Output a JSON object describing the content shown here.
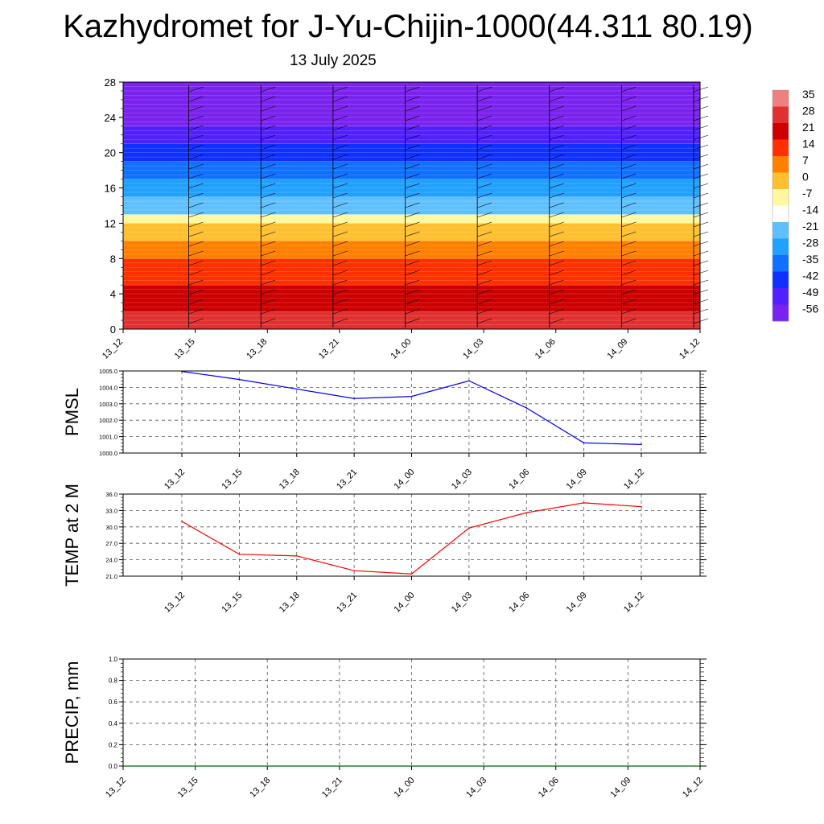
{
  "title": "Kazhydromet for J-Yu-Chijin-1000(44.311 80.19)",
  "subtitle": "13 July 2025",
  "colors": {
    "pmsl_line": "#0000ff",
    "temp_line": "#ff0000",
    "precip_line": "#006400",
    "grid": "#555555"
  },
  "chart_data": [
    {
      "type": "heatmap",
      "title": "",
      "xlabel": "",
      "ylabel": "",
      "x": [
        "13_12",
        "13_15",
        "13_18",
        "13_21",
        "14_00",
        "14_03",
        "14_06",
        "14_09",
        "14_12"
      ],
      "yticks": [
        0,
        4,
        8,
        12,
        16,
        20,
        24,
        28
      ],
      "ylim": [
        0,
        28
      ],
      "colorbar": {
        "labels": [
          "35",
          "28",
          "21",
          "14",
          "7",
          "0",
          "-7",
          "-14",
          "-21",
          "-28",
          "-35",
          "-42",
          "-49",
          "-56"
        ],
        "colors": [
          "#ee8080",
          "#e03030",
          "#cc0000",
          "#ff3000",
          "#ff8000",
          "#ffc030",
          "#fff8a0",
          "#ffffff",
          "#60c0ff",
          "#20a0ff",
          "#1070ff",
          "#1030ff",
          "#5020ff",
          "#7a22ee"
        ]
      },
      "bands": [
        {
          "level_from": 0,
          "level_to": 2,
          "value": 28
        },
        {
          "level_from": 2,
          "level_to": 5,
          "value": 21
        },
        {
          "level_from": 5,
          "level_to": 8,
          "value": 14
        },
        {
          "level_from": 8,
          "level_to": 10,
          "value": 7
        },
        {
          "level_from": 10,
          "level_to": 12,
          "value": 0
        },
        {
          "level_from": 12,
          "level_to": 13,
          "value": -7
        },
        {
          "level_from": 13,
          "level_to": 15,
          "value": -21
        },
        {
          "level_from": 15,
          "level_to": 17,
          "value": -28
        },
        {
          "level_from": 17,
          "level_to": 19,
          "value": -35
        },
        {
          "level_from": 19,
          "level_to": 21,
          "value": -42
        },
        {
          "level_from": 21,
          "level_to": 23,
          "value": -49
        },
        {
          "level_from": 23,
          "level_to": 28,
          "value": -56
        }
      ]
    },
    {
      "type": "line",
      "ylabel": "PMSL",
      "x": [
        "13_12",
        "13_15",
        "13_18",
        "13_21",
        "14_00",
        "14_03",
        "14_06",
        "14_09",
        "14_12"
      ],
      "ylim": [
        1000.0,
        1005.0
      ],
      "yticks": [
        "1000.0",
        "1001.0",
        "1002.0",
        "1003.0",
        "1004.0",
        "1005.0"
      ],
      "series": [
        {
          "values": [
            1004.97,
            1004.48,
            1003.9,
            1003.32,
            1003.45,
            1004.4,
            1002.75,
            1000.62,
            1000.52
          ]
        }
      ]
    },
    {
      "type": "line",
      "ylabel": "TEMP at 2 M",
      "x": [
        "13_12",
        "13_15",
        "13_18",
        "13_21",
        "14_00",
        "14_03",
        "14_06",
        "14_09",
        "14_12"
      ],
      "ylim": [
        21.0,
        36.0
      ],
      "yticks": [
        "21.0",
        "24.0",
        "27.0",
        "30.0",
        "33.0",
        "36.0"
      ],
      "series": [
        {
          "values": [
            31.0,
            25.0,
            24.7,
            22.0,
            21.4,
            29.8,
            32.6,
            34.4,
            33.7
          ]
        }
      ]
    },
    {
      "type": "line",
      "ylabel": "PRECIP, mm",
      "x": [
        "13_12",
        "13_15",
        "13_18",
        "13_21",
        "14_00",
        "14_03",
        "14_06",
        "14_09",
        "14_12"
      ],
      "ylim": [
        0.0,
        1.0
      ],
      "yticks": [
        "0.0",
        "0.2",
        "0.4",
        "0.6",
        "0.8",
        "1.0"
      ],
      "series": [
        {
          "values": [
            0,
            0,
            0,
            0,
            0,
            0,
            0,
            0,
            0
          ]
        }
      ]
    }
  ]
}
